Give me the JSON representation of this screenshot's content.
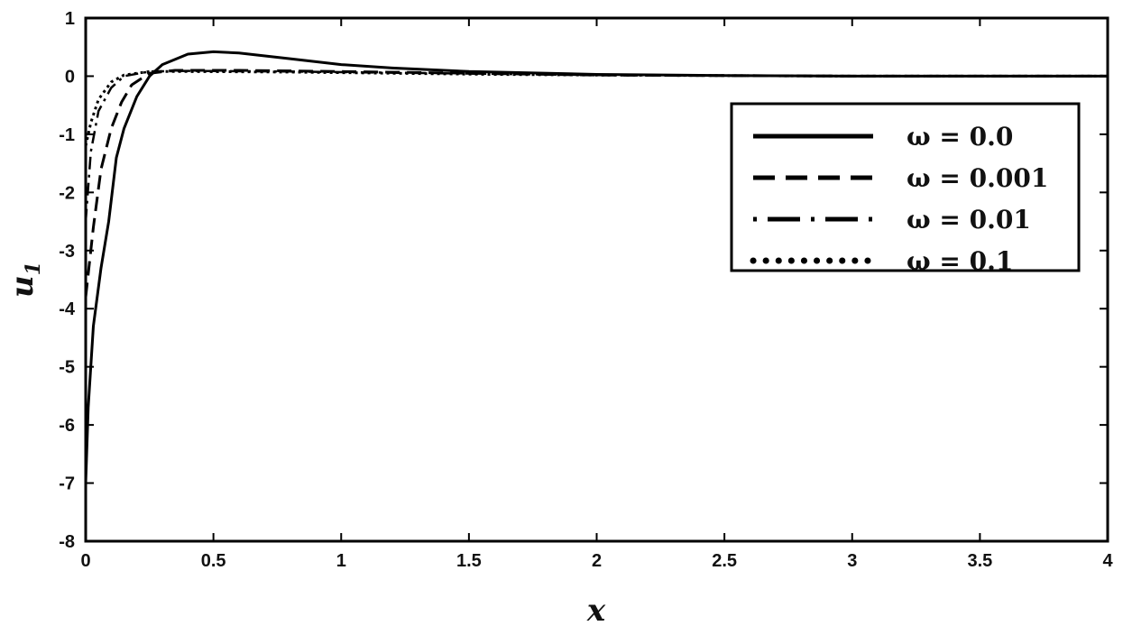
{
  "chart_data": {
    "type": "line",
    "title": "",
    "xlabel": "x",
    "ylabel": "u",
    "ylabel_subscript": "1",
    "xlim": [
      0,
      4
    ],
    "ylim": [
      -8,
      1
    ],
    "xticks": [
      "0",
      "0.5",
      "1",
      "1.5",
      "2",
      "2.5",
      "3",
      "3.5",
      "4"
    ],
    "yticks": [
      "1",
      "0",
      "-1",
      "-2",
      "-3",
      "-4",
      "-5",
      "-6",
      "-7",
      "-8"
    ],
    "grid": false,
    "legend_position": "top-right",
    "colors": {
      "line": "#000000",
      "text": "#111111"
    },
    "series": [
      {
        "name": "ω = 0.0",
        "style": "solid",
        "x": [
          0,
          0.01,
          0.03,
          0.06,
          0.09,
          0.12,
          0.15,
          0.2,
          0.25,
          0.3,
          0.4,
          0.5,
          0.6,
          0.8,
          1.0,
          1.2,
          1.5,
          2.0,
          2.5,
          3.0,
          3.5,
          4.0
        ],
        "y": [
          -7,
          -5.7,
          -4.3,
          -3.3,
          -2.5,
          -1.4,
          -0.9,
          -0.35,
          0.0,
          0.2,
          0.38,
          0.42,
          0.4,
          0.3,
          0.2,
          0.14,
          0.08,
          0.03,
          0.01,
          0,
          0,
          0
        ]
      },
      {
        "name": "ω = 0.001",
        "style": "dashed",
        "x": [
          0,
          0.03,
          0.06,
          0.1,
          0.14,
          0.18,
          0.25,
          0.35,
          0.6,
          1.0,
          1.5,
          2.0,
          3.0,
          4.0
        ],
        "y": [
          -3.8,
          -2.6,
          -1.6,
          -0.9,
          -0.45,
          -0.15,
          0.05,
          0.1,
          0.1,
          0.08,
          0.05,
          0.02,
          0,
          0
        ]
      },
      {
        "name": "ω = 0.01",
        "style": "dash-dot",
        "x": [
          0,
          0.02,
          0.05,
          0.1,
          0.15,
          0.25,
          0.4,
          0.8,
          1.2,
          1.6,
          2.0,
          3.0,
          4.0
        ],
        "y": [
          -2.5,
          -1.3,
          -0.6,
          -0.2,
          0.0,
          0.08,
          0.09,
          0.08,
          0.06,
          0.04,
          0.02,
          0,
          0
        ]
      },
      {
        "name": "ω = 0.1",
        "style": "dotted",
        "x": [
          0,
          0.02,
          0.05,
          0.1,
          0.15,
          0.25,
          0.4,
          0.8,
          1.2,
          1.6,
          2.0,
          3.0,
          4.0
        ],
        "y": [
          -1.2,
          -0.8,
          -0.4,
          -0.1,
          0.02,
          0.08,
          0.08,
          0.07,
          0.05,
          0.03,
          0.02,
          0,
          0
        ]
      }
    ]
  }
}
